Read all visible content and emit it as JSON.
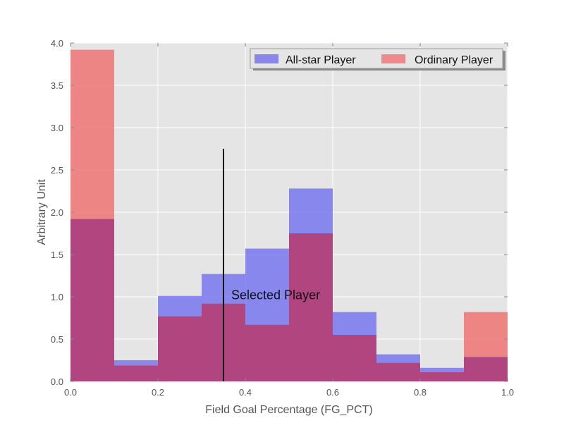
{
  "chart_data": {
    "type": "bar",
    "subtype": "histogram",
    "bin_edges": [
      0.0,
      0.1,
      0.2,
      0.3,
      0.4,
      0.5,
      0.6,
      0.7,
      0.8,
      0.9,
      1.0
    ],
    "series": [
      {
        "name": "All-star Player",
        "color": "#6f6ff0",
        "values": [
          1.92,
          0.25,
          1.01,
          1.27,
          1.57,
          2.28,
          0.82,
          0.32,
          0.16,
          0.29
        ]
      },
      {
        "name": "Ordinary Player",
        "color": "#f06d6d",
        "values": [
          3.92,
          0.19,
          0.77,
          0.92,
          0.67,
          1.75,
          0.55,
          0.22,
          0.11,
          0.82
        ]
      }
    ],
    "overlap_color": "#b0457f",
    "xlabel": "Field Goal Percentage (FG_PCT)",
    "ylabel": "Arbitrary Unit",
    "xlim": [
      0.0,
      1.0
    ],
    "ylim": [
      0.0,
      4.0
    ],
    "xticks": [
      "0.0",
      "0.2",
      "0.4",
      "0.6",
      "0.8",
      "1.0"
    ],
    "yticks": [
      "0.0",
      "0.5",
      "1.0",
      "1.5",
      "2.0",
      "2.5",
      "3.0",
      "3.5",
      "4.0"
    ],
    "grid": true,
    "legend_position": "top-right",
    "annotation": {
      "text": "Selected Player",
      "x": 0.35,
      "y_top": 2.75
    }
  }
}
